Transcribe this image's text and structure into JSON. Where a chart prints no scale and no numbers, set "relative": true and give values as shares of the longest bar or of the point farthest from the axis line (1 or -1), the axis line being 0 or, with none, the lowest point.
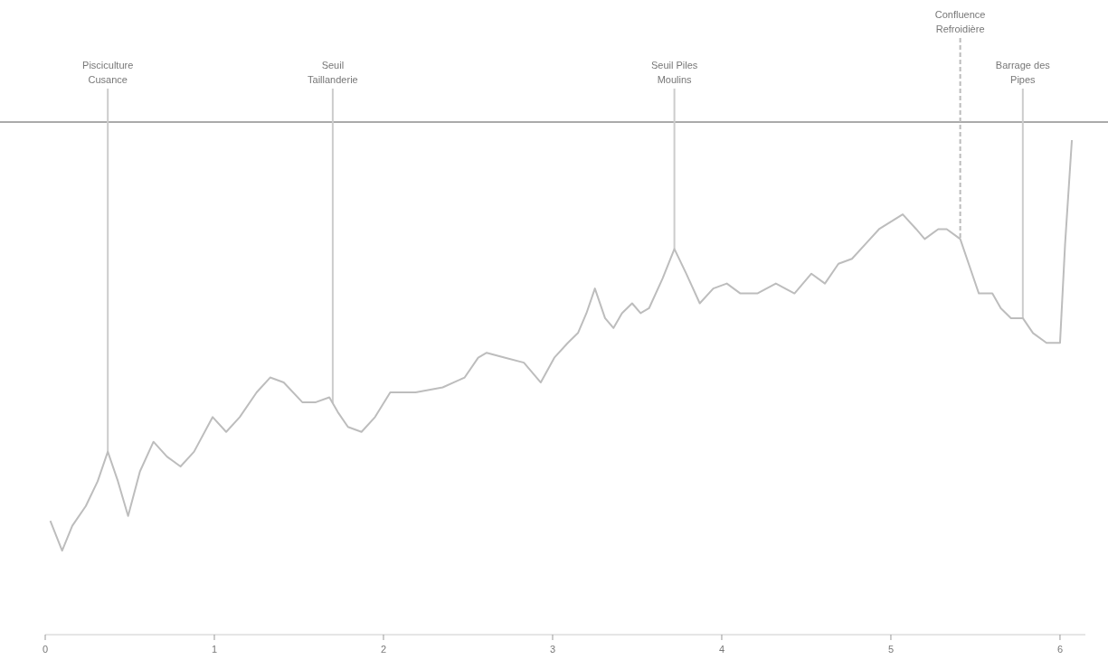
{
  "chart_data": {
    "type": "line",
    "relative": true,
    "xlim": [
      0,
      6.15
    ],
    "xticks": [
      0,
      1,
      2,
      3,
      4,
      5,
      6
    ],
    "tick_labels": "x",
    "grid": false,
    "marker": "none",
    "line_style": "solid",
    "series": [
      {
        "color": "#bdbdbd",
        "x": [
          0.03,
          0.1,
          0.16,
          0.24,
          0.31,
          0.37,
          0.43,
          0.49,
          0.56,
          0.64,
          0.72,
          0.8,
          0.88,
          0.99,
          1.07,
          1.15,
          1.25,
          1.33,
          1.41,
          1.52,
          1.6,
          1.68,
          1.73,
          1.79,
          1.87,
          1.95,
          2.04,
          2.19,
          2.35,
          2.48,
          2.56,
          2.61,
          2.72,
          2.83,
          2.93,
          3.01,
          3.09,
          3.15,
          3.2,
          3.25,
          3.31,
          3.36,
          3.41,
          3.47,
          3.52,
          3.57,
          3.65,
          3.72,
          3.79,
          3.87,
          3.95,
          4.03,
          4.11,
          4.21,
          4.32,
          4.43,
          4.53,
          4.61,
          4.69,
          4.77,
          4.85,
          4.93,
          5.07,
          5.15,
          5.2,
          5.28,
          5.33,
          5.41,
          5.47,
          5.52,
          5.6,
          5.65,
          5.71,
          5.78,
          5.84,
          5.92,
          6.0,
          6.03,
          6.07
        ],
        "values": [
          0.23,
          0.17,
          0.22,
          0.26,
          0.31,
          0.37,
          0.31,
          0.24,
          0.33,
          0.39,
          0.36,
          0.34,
          0.37,
          0.44,
          0.41,
          0.44,
          0.49,
          0.52,
          0.51,
          0.47,
          0.47,
          0.48,
          0.45,
          0.42,
          0.41,
          0.44,
          0.49,
          0.49,
          0.5,
          0.52,
          0.56,
          0.57,
          0.56,
          0.55,
          0.51,
          0.56,
          0.59,
          0.61,
          0.65,
          0.7,
          0.64,
          0.62,
          0.65,
          0.67,
          0.65,
          0.66,
          0.72,
          0.78,
          0.73,
          0.67,
          0.7,
          0.71,
          0.69,
          0.69,
          0.71,
          0.69,
          0.73,
          0.71,
          0.75,
          0.76,
          0.79,
          0.82,
          0.85,
          0.82,
          0.8,
          0.82,
          0.82,
          0.8,
          0.74,
          0.69,
          0.69,
          0.66,
          0.64,
          0.64,
          0.61,
          0.59,
          0.59,
          0.79,
          1
        ]
      }
    ],
    "ref_lines": [
      {
        "axis": "x",
        "value": 0.37,
        "label": "Pisciculture Cusance",
        "color": "#cccccc",
        "line_style": "solid"
      },
      {
        "axis": "x",
        "value": 1.7,
        "label": "Seuil Taillanderie",
        "color": "#cccccc",
        "line_style": "solid"
      },
      {
        "axis": "x",
        "value": 3.72,
        "label": "Seuil Piles Moulins",
        "color": "#cccccc",
        "line_style": "solid"
      },
      {
        "axis": "x",
        "value": 5.41,
        "label": "Confluence Refroidière",
        "color": "#bbbbbb",
        "line_style": "dashed"
      },
      {
        "axis": "x",
        "value": 5.78,
        "label": "Barrage des Pipes",
        "color": "#cccccc",
        "line_style": "solid"
      }
    ]
  }
}
